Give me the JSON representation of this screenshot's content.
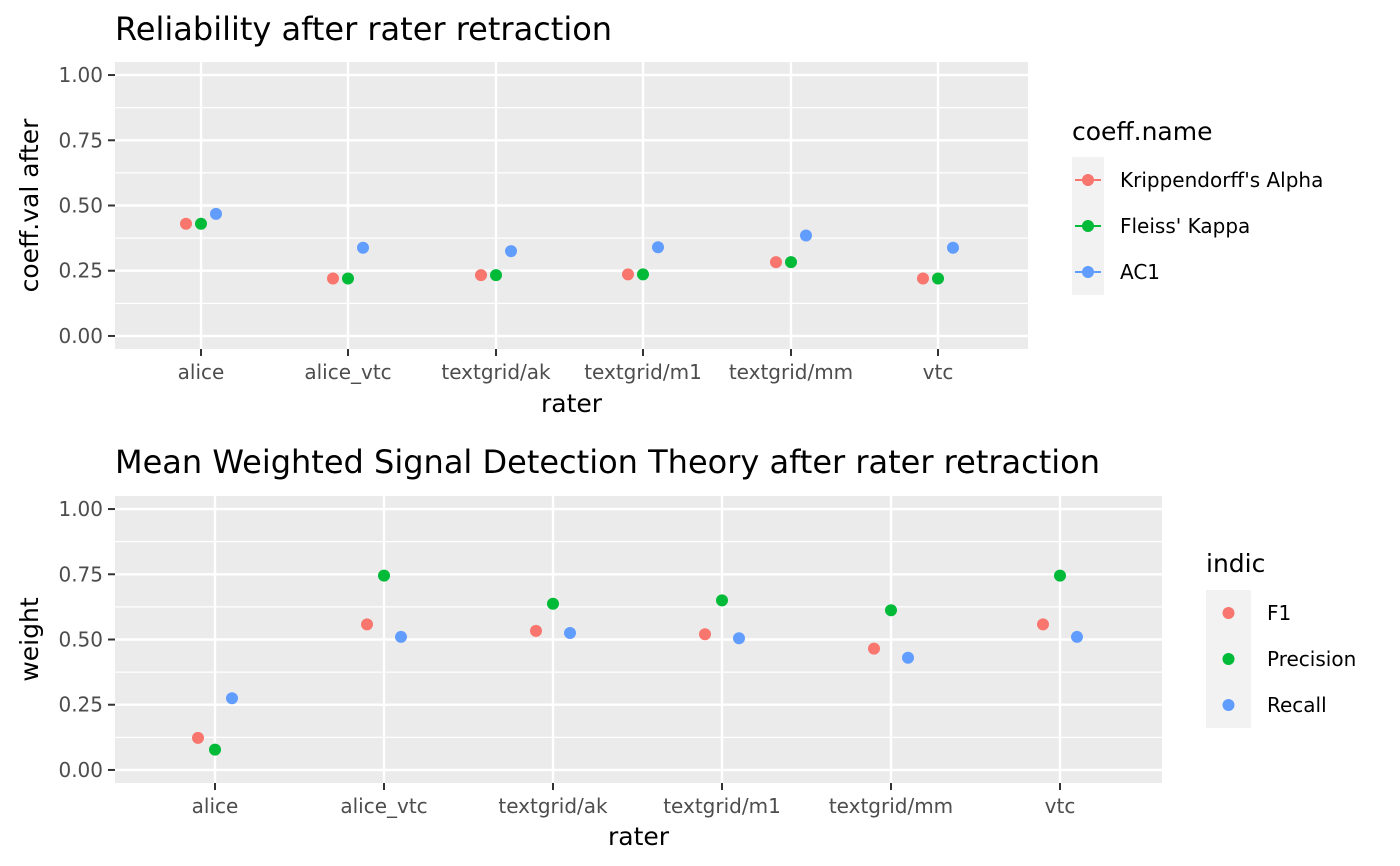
{
  "chart_data": [
    {
      "type": "scatter",
      "title": "Reliability after rater retraction",
      "xlabel": "rater",
      "ylabel": "coeff.val after",
      "categories": [
        "alice",
        "alice_vtc",
        "textgrid/ak",
        "textgrid/m1",
        "textgrid/mm",
        "vtc"
      ],
      "yticks": [
        "0.00",
        "0.25",
        "0.50",
        "0.75",
        "1.00"
      ],
      "ylim": [
        -0.05,
        1.05
      ],
      "grid": true,
      "legend": {
        "title": "coeff.name",
        "placement": "right",
        "show_line": true,
        "entries": [
          "Krippendorff's Alpha",
          "Fleiss' Kappa",
          "AC1"
        ]
      },
      "series": [
        {
          "name": "Krippendorff's Alpha",
          "color": "#F8766D",
          "values": [
            0.43,
            0.22,
            0.233,
            0.236,
            0.283,
            0.22
          ]
        },
        {
          "name": "Fleiss' Kappa",
          "color": "#00BA38",
          "values": [
            0.43,
            0.22,
            0.233,
            0.236,
            0.283,
            0.22
          ]
        },
        {
          "name": "AC1",
          "color": "#619CFF",
          "values": [
            0.468,
            0.338,
            0.325,
            0.34,
            0.385,
            0.338
          ]
        }
      ]
    },
    {
      "type": "scatter",
      "title": "Mean Weighted Signal Detection Theory after rater retraction",
      "xlabel": "rater",
      "ylabel": "weight",
      "categories": [
        "alice",
        "alice_vtc",
        "textgrid/ak",
        "textgrid/m1",
        "textgrid/mm",
        "vtc"
      ],
      "yticks": [
        "0.00",
        "0.25",
        "0.50",
        "0.75",
        "1.00"
      ],
      "ylim": [
        -0.05,
        1.05
      ],
      "grid": true,
      "legend": {
        "title": "indic",
        "placement": "right",
        "show_line": false,
        "entries": [
          "F1",
          "Precision",
          "Recall"
        ]
      },
      "series": [
        {
          "name": "F1",
          "color": "#F8766D",
          "values": [
            0.123,
            0.558,
            0.533,
            0.52,
            0.465,
            0.558
          ]
        },
        {
          "name": "Precision",
          "color": "#00BA38",
          "values": [
            0.078,
            0.745,
            0.637,
            0.65,
            0.612,
            0.745
          ]
        },
        {
          "name": "Recall",
          "color": "#619CFF",
          "values": [
            0.275,
            0.51,
            0.525,
            0.505,
            0.43,
            0.51
          ]
        }
      ]
    }
  ]
}
